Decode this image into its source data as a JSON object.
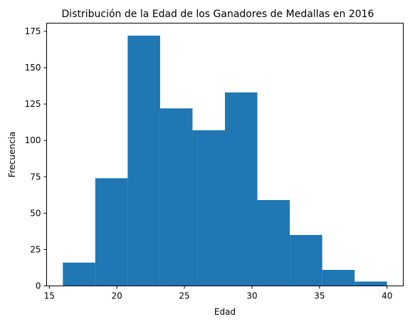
{
  "chart_data": {
    "type": "bar",
    "title": "Distribución de la Edad de los Ganadores de Medallas en 2016",
    "xlabel": "Edad",
    "ylabel": "Frecuencia",
    "bins": [
      {
        "x0": 16.0,
        "x1": 18.4,
        "count": 16
      },
      {
        "x0": 18.4,
        "x1": 20.8,
        "count": 74
      },
      {
        "x0": 20.8,
        "x1": 23.2,
        "count": 172
      },
      {
        "x0": 23.2,
        "x1": 25.6,
        "count": 122
      },
      {
        "x0": 25.6,
        "x1": 28.0,
        "count": 107
      },
      {
        "x0": 28.0,
        "x1": 30.4,
        "count": 133
      },
      {
        "x0": 30.4,
        "x1": 32.8,
        "count": 59
      },
      {
        "x0": 32.8,
        "x1": 35.2,
        "count": 35
      },
      {
        "x0": 35.2,
        "x1": 37.6,
        "count": 11
      },
      {
        "x0": 37.6,
        "x1": 40.0,
        "count": 3
      }
    ],
    "xlim": [
      14.8,
      41.2
    ],
    "ylim": [
      0,
      180.6
    ],
    "xticks": [
      15,
      20,
      25,
      30,
      35,
      40
    ],
    "xtick_labels": [
      "15",
      "20",
      "25",
      "30",
      "35",
      "40"
    ],
    "yticks": [
      0,
      25,
      50,
      75,
      100,
      125,
      150,
      175
    ],
    "ytick_labels": [
      "0",
      "25",
      "50",
      "75",
      "100",
      "125",
      "150",
      "175"
    ],
    "grid": false,
    "bar_color": "#1f77b4"
  }
}
